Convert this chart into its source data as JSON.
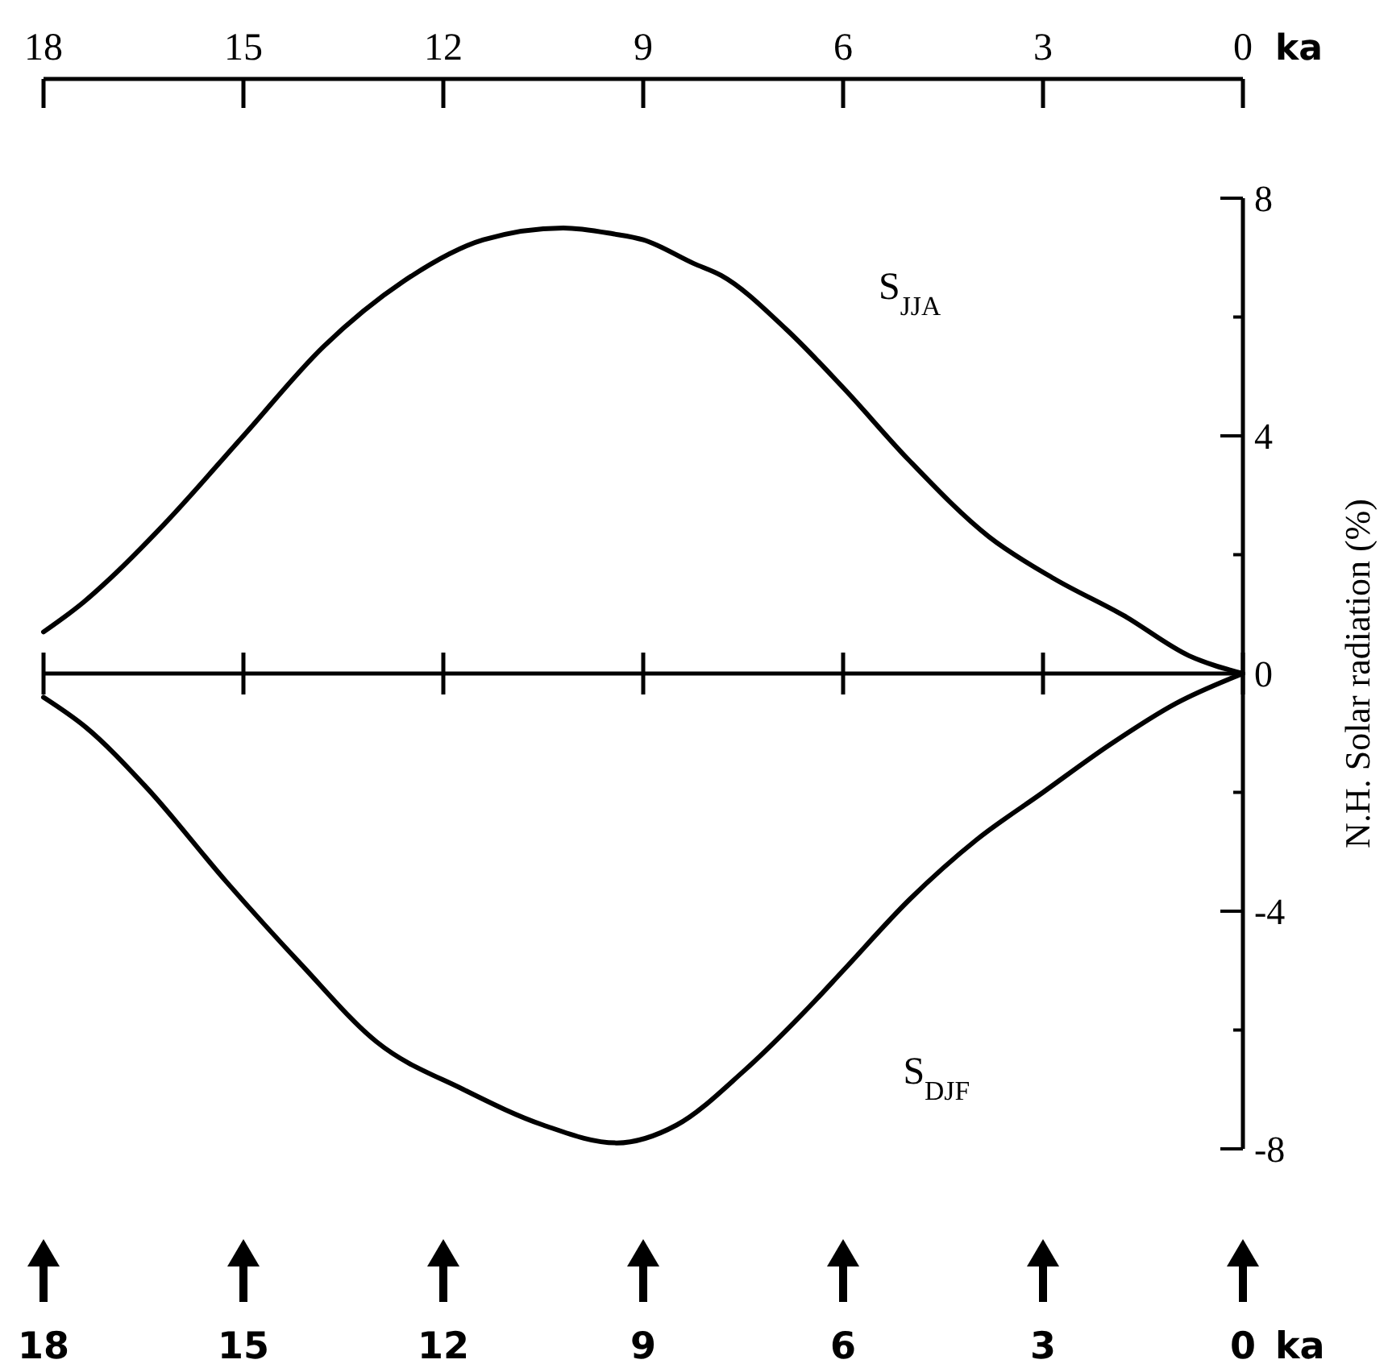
{
  "chart_data": {
    "type": "line",
    "xlabel": "ka",
    "x2label": "ka",
    "ylabel": "N.H. Solar radiation (%)",
    "xlim": [
      18,
      0
    ],
    "xticks": [
      18,
      15,
      12,
      9,
      6,
      3,
      0
    ],
    "x2lim": [
      18,
      0
    ],
    "x2ticks": [
      18,
      15,
      12,
      9,
      6,
      3,
      0
    ],
    "ylim": [
      -8,
      8
    ],
    "yticks": [
      -8,
      {
        "value": -6,
        "label": null
      },
      -4,
      {
        "value": -2,
        "label": null
      },
      0,
      {
        "value": 2,
        "label": null
      },
      4,
      {
        "value": 6,
        "label": null
      },
      8
    ],
    "ref_lines": [
      {
        "axis": "y",
        "value": 0
      }
    ],
    "line_style": "solid",
    "series": [
      {
        "name": "S$_{JJA}$",
        "color": "#000000",
        "x": [
          18,
          17.4,
          17,
          16.2,
          15,
          13.8,
          12.6,
          11.4,
          10.2,
          9.45,
          9,
          8.24,
          7.83,
          6.86,
          5.99,
          5.02,
          3.81,
          2.84,
          1.78,
          0.81,
          0
        ],
        "values": [
          0.7,
          1.2,
          1.6,
          2.5,
          4.0,
          5.5,
          6.6,
          7.3,
          7.5,
          7.4,
          7.3,
          6.9,
          6.7,
          5.8,
          4.8,
          3.6,
          2.3,
          1.6,
          0.97,
          0.3,
          0
        ]
      },
      {
        "name": "S$_{DJF}$",
        "color": "#000000",
        "x": [
          18,
          17.37,
          16.47,
          15.26,
          14.13,
          13,
          11.7,
          10.5,
          9.4,
          8.5,
          7.5,
          6.5,
          6,
          5,
          4,
          3,
          2,
          1,
          0
        ],
        "values": [
          -0.4,
          -0.9,
          -1.9,
          -3.5,
          -4.9,
          -6.2,
          -7.0,
          -7.6,
          -7.9,
          -7.6,
          -6.7,
          -5.6,
          -5.0,
          -3.8,
          -2.8,
          -2.0,
          -1.2,
          -0.5,
          0
        ]
      }
    ]
  }
}
